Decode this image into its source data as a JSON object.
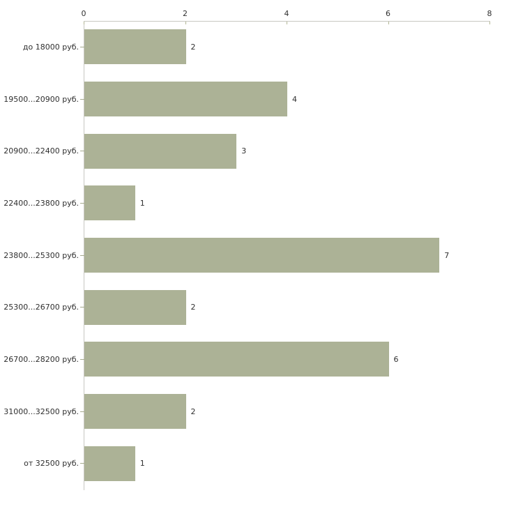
{
  "chart_data": {
    "type": "bar",
    "orientation": "horizontal",
    "title": "",
    "xlabel": "",
    "ylabel": "",
    "categories": [
      "до 18000 руб.",
      "19500...20900 руб.",
      "20900...22400 руб.",
      "22400...23800 руб.",
      "23800...25300 руб.",
      "25300...26700 руб.",
      "26700...28200 руб.",
      "31000...32500 руб.",
      "от 32500 руб."
    ],
    "values": [
      2,
      4,
      3,
      1,
      7,
      2,
      6,
      2,
      1
    ],
    "data_labels": [
      "2",
      "4",
      "3",
      "1",
      "7",
      "2",
      "6",
      "2",
      "1"
    ],
    "xlim": [
      0,
      8
    ],
    "xticks": [
      0,
      2,
      4,
      6,
      8
    ],
    "xtick_labels": [
      "0",
      "2",
      "4",
      "6",
      "8"
    ],
    "axis_position": "top",
    "grid": false,
    "legend": false,
    "colors": {
      "bar_fill": "#acb296",
      "axis_line": "#c8c8c2",
      "tick_mark": "#b2b694",
      "text": "#2f2f2f",
      "background": "#ffffff"
    }
  }
}
